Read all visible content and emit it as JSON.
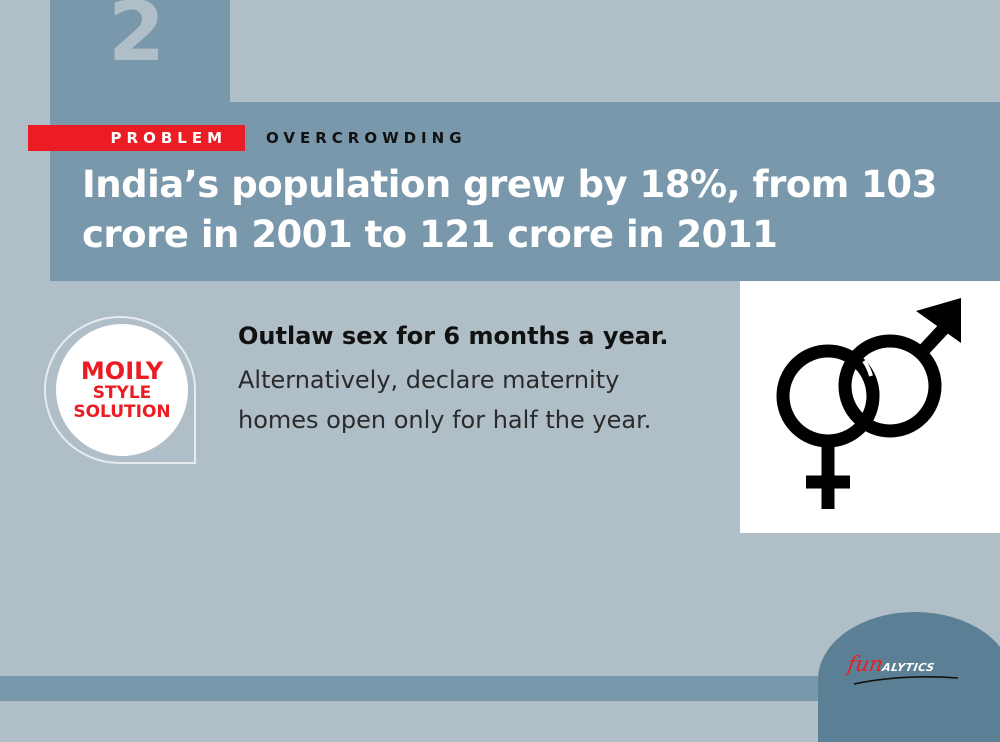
{
  "card": {
    "number": "2",
    "problem_label": "PROBLEM",
    "category": "OVERCROWDING",
    "headline": "India’s population grew by 18%, from 103\ncrore in 2001 to 121 crore  in 2011"
  },
  "badge": {
    "line1": "MOILY",
    "line2": "STYLE",
    "line3": "SOLUTION"
  },
  "solution": {
    "title": "Outlaw sex for 6 months a year.",
    "body": "Alternatively, declare maternity homes open only for half the year."
  },
  "symbol": {
    "icon": "male-female-symbol-icon"
  },
  "brand": {
    "logo_fun": "fun",
    "logo_rest": "ALYTICS"
  },
  "colors": {
    "background": "#b0bec8",
    "band": "#7a98ab",
    "accent_red": "#ec1c24",
    "logo_dome": "#5b7f94"
  }
}
